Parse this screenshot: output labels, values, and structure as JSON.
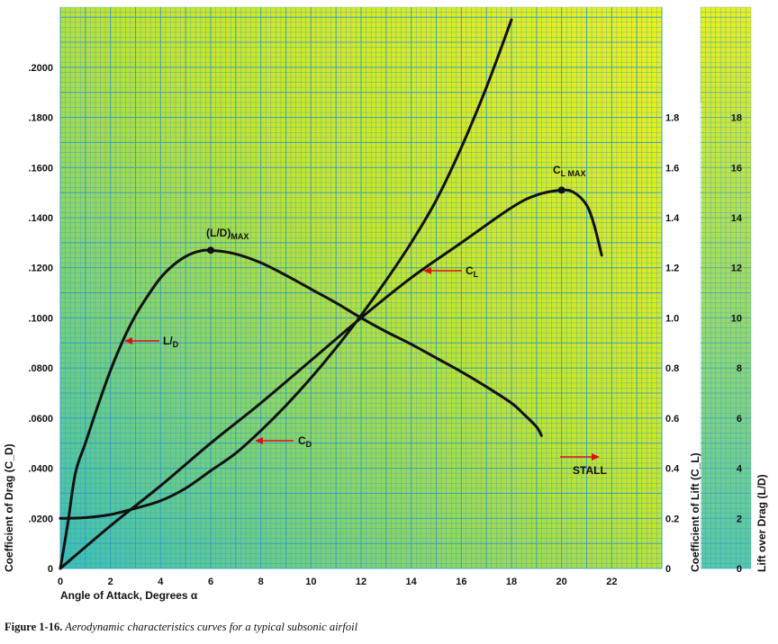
{
  "chart_data": {
    "type": "line",
    "xlabel": "Angle of Attack, Degrees α",
    "ylabel_left": "Coefficient of Drag (C_D)",
    "ylabel_cl": "Coefficient of Lift (C_L)",
    "ylabel_ld": "Lift over Drag (L/D)",
    "x_ticks": [
      "0",
      "2",
      "4",
      "6",
      "8",
      "10",
      "12",
      "14",
      "16",
      "18",
      "20",
      "22"
    ],
    "cd_ticks": [
      "0",
      ".0200",
      ".0400",
      ".0600",
      ".0800",
      ".1000",
      ".1200",
      ".1400",
      ".1600",
      ".1800",
      ".2000"
    ],
    "cl_ticks": [
      "0",
      "0.2",
      "0.4",
      "0.6",
      "0.8",
      "1.0",
      "1.2",
      "1.4",
      "1.6",
      "1.8"
    ],
    "ld_ticks": [
      "0",
      "2",
      "4",
      "6",
      "8",
      "10",
      "12",
      "14",
      "16",
      "18"
    ],
    "xlim": [
      0,
      24
    ],
    "ylim_cd": [
      0,
      0.224
    ],
    "ylim_cl": [
      0,
      2.24
    ],
    "ylim_ld": [
      0,
      22.4
    ],
    "grid": true,
    "series": [
      {
        "name": "C_D",
        "axis": "cd",
        "x": [
          0,
          1,
          2,
          3,
          4,
          5,
          6,
          7,
          8,
          9,
          10,
          11,
          12,
          13,
          14,
          15,
          16,
          17,
          18
        ],
        "y": [
          0.02,
          0.0203,
          0.0215,
          0.024,
          0.027,
          0.032,
          0.039,
          0.046,
          0.055,
          0.065,
          0.076,
          0.088,
          0.101,
          0.115,
          0.13,
          0.147,
          0.168,
          0.192,
          0.219
        ]
      },
      {
        "name": "C_L",
        "axis": "cl",
        "x": [
          0,
          2,
          4,
          6,
          8,
          10,
          12,
          14,
          16,
          18,
          19,
          20,
          20.5,
          21,
          21.3,
          21.6
        ],
        "y": [
          0,
          0.17,
          0.33,
          0.5,
          0.66,
          0.83,
          1.0,
          1.16,
          1.3,
          1.44,
          1.49,
          1.51,
          1.5,
          1.45,
          1.37,
          1.25
        ]
      },
      {
        "name": "L/D",
        "axis": "ld",
        "x": [
          0,
          0.3,
          0.6,
          1,
          1.5,
          2,
          2.5,
          3,
          3.5,
          4,
          4.5,
          5,
          5.5,
          6,
          7,
          8,
          9,
          10,
          11,
          12,
          13,
          14,
          15,
          16,
          17,
          18,
          18.5,
          19,
          19.2
        ],
        "y": [
          0,
          1.8,
          3.8,
          5.0,
          6.5,
          7.9,
          9.1,
          10.1,
          10.9,
          11.6,
          12.1,
          12.45,
          12.65,
          12.7,
          12.55,
          12.2,
          11.7,
          11.15,
          10.6,
          10.0,
          9.45,
          8.95,
          8.4,
          7.85,
          7.25,
          6.6,
          6.15,
          5.65,
          5.3
        ]
      }
    ],
    "annotations": [
      {
        "label": "(L/D)",
        "sub": "MAX",
        "x": 6,
        "y": 12.7,
        "axis": "ld",
        "marker": true
      },
      {
        "label": "C",
        "sub": "L MAX",
        "x": 20,
        "y": 1.51,
        "axis": "cl",
        "marker": true
      },
      {
        "label": "C",
        "sub": "L",
        "pointer": true
      },
      {
        "label": "C",
        "sub": "D",
        "pointer": true
      },
      {
        "label": "L/",
        "sub": "D",
        "pointer": true
      },
      {
        "label": "STALL",
        "pointer": true
      }
    ],
    "colors": {
      "gradient_top": "#e8ee1a",
      "gradient_bottom": "#3fc2b4",
      "grid": "#2f9bd0",
      "curve": "#111111",
      "arrow": "#dd1111"
    }
  },
  "caption": {
    "label": "Figure 1-16.",
    "text": " Aerodynamic characteristics curves for a typical subsonic airfoil"
  }
}
